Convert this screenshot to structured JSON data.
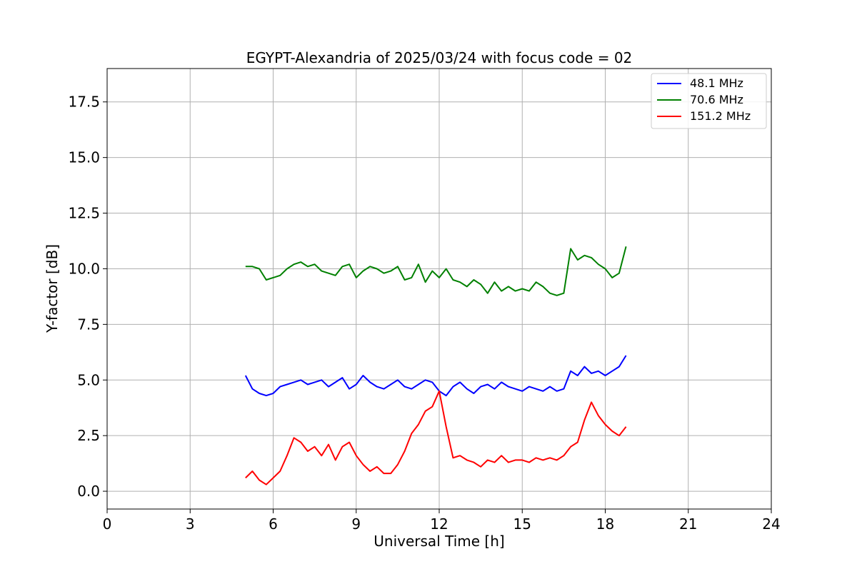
{
  "chart_data": {
    "type": "line",
    "title": "EGYPT-Alexandria of 2025/03/24 with focus code = 02",
    "xlabel": "Universal Time [h]",
    "ylabel": "Y-factor [dB]",
    "xlim": [
      0,
      24
    ],
    "ylim": [
      -0.8,
      19.0
    ],
    "xticks": [
      0,
      3,
      6,
      9,
      12,
      15,
      18,
      21,
      24
    ],
    "xtick_labels": [
      "0",
      "3",
      "6",
      "9",
      "12",
      "15",
      "18",
      "21",
      "24"
    ],
    "yticks": [
      0.0,
      2.5,
      5.0,
      7.5,
      10.0,
      12.5,
      15.0,
      17.5
    ],
    "ytick_labels": [
      "0.0",
      "2.5",
      "5.0",
      "7.5",
      "10.0",
      "12.5",
      "15.0",
      "17.5"
    ],
    "grid": true,
    "legend_position": "top-right",
    "series": [
      {
        "name": " 48.1 MHz",
        "color": "#0000ff",
        "x": [
          5.0,
          5.25,
          5.5,
          5.75,
          6.0,
          6.25,
          6.5,
          6.75,
          7.0,
          7.25,
          7.5,
          7.75,
          8.0,
          8.25,
          8.5,
          8.75,
          9.0,
          9.25,
          9.5,
          9.75,
          10.0,
          10.25,
          10.5,
          10.75,
          11.0,
          11.25,
          11.5,
          11.75,
          12.0,
          12.25,
          12.5,
          12.75,
          13.0,
          13.25,
          13.5,
          13.75,
          14.0,
          14.25,
          14.5,
          14.75,
          15.0,
          15.25,
          15.5,
          15.75,
          16.0,
          16.25,
          16.5,
          16.75,
          17.0,
          17.25,
          17.5,
          17.75,
          18.0,
          18.25,
          18.5,
          18.75
        ],
        "y": [
          5.2,
          4.6,
          4.4,
          4.3,
          4.4,
          4.7,
          4.8,
          4.9,
          5.0,
          4.8,
          4.9,
          5.0,
          4.7,
          4.9,
          5.1,
          4.6,
          4.8,
          5.2,
          4.9,
          4.7,
          4.6,
          4.8,
          5.0,
          4.7,
          4.6,
          4.8,
          5.0,
          4.9,
          4.5,
          4.3,
          4.7,
          4.9,
          4.6,
          4.4,
          4.7,
          4.8,
          4.6,
          4.9,
          4.7,
          4.6,
          4.5,
          4.7,
          4.6,
          4.5,
          4.7,
          4.5,
          4.6,
          5.4,
          5.2,
          5.6,
          5.3,
          5.4,
          5.2,
          5.4,
          5.6,
          6.1
        ]
      },
      {
        "name": " 70.6 MHz",
        "color": "#008000",
        "x": [
          5.0,
          5.25,
          5.5,
          5.75,
          6.0,
          6.25,
          6.5,
          6.75,
          7.0,
          7.25,
          7.5,
          7.75,
          8.0,
          8.25,
          8.5,
          8.75,
          9.0,
          9.25,
          9.5,
          9.75,
          10.0,
          10.25,
          10.5,
          10.75,
          11.0,
          11.25,
          11.5,
          11.75,
          12.0,
          12.25,
          12.5,
          12.75,
          13.0,
          13.25,
          13.5,
          13.75,
          14.0,
          14.25,
          14.5,
          14.75,
          15.0,
          15.25,
          15.5,
          15.75,
          16.0,
          16.25,
          16.5,
          16.75,
          17.0,
          17.25,
          17.5,
          17.75,
          18.0,
          18.25,
          18.5,
          18.75
        ],
        "y": [
          10.1,
          10.1,
          10.0,
          9.5,
          9.6,
          9.7,
          10.0,
          10.2,
          10.3,
          10.1,
          10.2,
          9.9,
          9.8,
          9.7,
          10.1,
          10.2,
          9.6,
          9.9,
          10.1,
          10.0,
          9.8,
          9.9,
          10.1,
          9.5,
          9.6,
          10.2,
          9.4,
          9.9,
          9.6,
          10.0,
          9.5,
          9.4,
          9.2,
          9.5,
          9.3,
          8.9,
          9.4,
          9.0,
          9.2,
          9.0,
          9.1,
          9.0,
          9.4,
          9.2,
          8.9,
          8.8,
          8.9,
          10.9,
          10.4,
          10.6,
          10.5,
          10.2,
          10.0,
          9.6,
          9.8,
          11.0
        ]
      },
      {
        "name": " 151.2 MHz",
        "color": "#ff0000",
        "x": [
          5.0,
          5.25,
          5.5,
          5.75,
          6.0,
          6.25,
          6.5,
          6.75,
          7.0,
          7.25,
          7.5,
          7.75,
          8.0,
          8.25,
          8.5,
          8.75,
          9.0,
          9.25,
          9.5,
          9.75,
          10.0,
          10.25,
          10.5,
          10.75,
          11.0,
          11.25,
          11.5,
          11.75,
          12.0,
          12.25,
          12.5,
          12.75,
          13.0,
          13.25,
          13.5,
          13.75,
          14.0,
          14.25,
          14.5,
          14.75,
          15.0,
          15.25,
          15.5,
          15.75,
          16.0,
          16.25,
          16.5,
          16.75,
          17.0,
          17.25,
          17.5,
          17.75,
          18.0,
          18.25,
          18.5,
          18.75
        ],
        "y": [
          0.6,
          0.9,
          0.5,
          0.3,
          0.6,
          0.9,
          1.6,
          2.4,
          2.2,
          1.8,
          2.0,
          1.6,
          2.1,
          1.4,
          2.0,
          2.2,
          1.6,
          1.2,
          0.9,
          1.1,
          0.8,
          0.8,
          1.2,
          1.8,
          2.6,
          3.0,
          3.6,
          3.8,
          4.5,
          2.9,
          1.5,
          1.6,
          1.4,
          1.3,
          1.1,
          1.4,
          1.3,
          1.6,
          1.3,
          1.4,
          1.4,
          1.3,
          1.5,
          1.4,
          1.5,
          1.4,
          1.6,
          2.0,
          2.2,
          3.2,
          4.0,
          3.4,
          3.0,
          2.7,
          2.5,
          2.9
        ]
      }
    ]
  }
}
